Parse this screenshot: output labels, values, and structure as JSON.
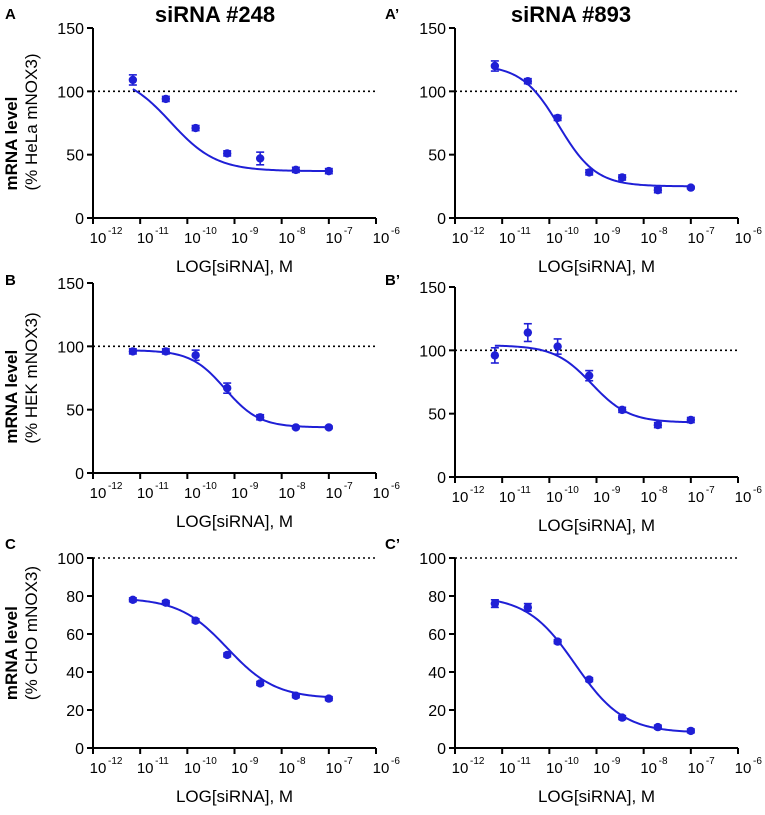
{
  "column_titles": [
    "siRNA #248",
    "siRNA #893"
  ],
  "row_ylabels": [
    {
      "line1": "mRNA level",
      "line2": "(% HeLa mNOX3)"
    },
    {
      "line1": "mRNA level",
      "line2": "(% HEK mNOX3)"
    },
    {
      "line1": "mRNA level",
      "line2": "(% CHO mNOX3)"
    }
  ],
  "colors": {
    "series": "#1f1fd6",
    "axis": "#000000",
    "reference_line": "#000000"
  },
  "chart_data": [
    {
      "panel_label": "A",
      "type": "scatter",
      "title": "siRNA #248",
      "xlabel": "LOG[siRNA], M",
      "ylabel": "mRNA level (% HeLa mNOX3)",
      "xscale": "log",
      "xlim_exp": [
        -12,
        -6
      ],
      "x_tick_exponents": [
        -12,
        -11,
        -10,
        -9,
        -8,
        -7,
        -6
      ],
      "ylim": [
        0,
        150
      ],
      "yticks": [
        0,
        50,
        100,
        150
      ],
      "reference_line": 100,
      "x": [
        7e-12,
        3.5e-11,
        1.5e-10,
        7e-10,
        3.5e-09,
        2e-08,
        1e-07
      ],
      "y": [
        109,
        94,
        71,
        51,
        47,
        38,
        37
      ],
      "err": [
        4,
        2,
        2,
        2,
        5,
        2,
        2
      ],
      "fit": {
        "bottom": 37,
        "top": 114,
        "logEC50": -10.35,
        "hill": 0.9
      }
    },
    {
      "panel_label": "A’",
      "type": "scatter",
      "title": "siRNA #893",
      "xlabel": "LOG[siRNA], M",
      "ylabel": "",
      "xscale": "log",
      "xlim_exp": [
        -12,
        -6
      ],
      "x_tick_exponents": [
        -12,
        -11,
        -10,
        -9,
        -8,
        -7,
        -6
      ],
      "ylim": [
        0,
        150
      ],
      "yticks": [
        0,
        50,
        100,
        150
      ],
      "reference_line": 100,
      "x": [
        7e-12,
        3.5e-11,
        1.5e-10,
        7e-10,
        3.5e-09,
        2e-08,
        1e-07
      ],
      "y": [
        120,
        108,
        79,
        36,
        32,
        22,
        24
      ],
      "err": [
        4,
        2,
        2,
        2,
        2,
        2,
        1
      ],
      "fit": {
        "bottom": 25,
        "top": 121,
        "logEC50": -9.8,
        "hill": 1.1
      }
    },
    {
      "panel_label": "B",
      "type": "scatter",
      "title": "",
      "xlabel": "LOG[siRNA], M",
      "ylabel": "mRNA level (% HEK mNOX3)",
      "xscale": "log",
      "xlim_exp": [
        -12,
        -6
      ],
      "x_tick_exponents": [
        -12,
        -11,
        -10,
        -9,
        -8,
        -7,
        -6
      ],
      "ylim": [
        0,
        150
      ],
      "yticks": [
        0,
        50,
        100,
        150
      ],
      "reference_line": 100,
      "x": [
        7e-12,
        3.5e-11,
        1.5e-10,
        7e-10,
        3.5e-09,
        2e-08,
        1e-07
      ],
      "y": [
        96,
        96,
        93,
        67,
        44,
        36,
        36
      ],
      "err": [
        2,
        2,
        4,
        4,
        2,
        1,
        1
      ],
      "fit": {
        "bottom": 36,
        "top": 97,
        "logEC50": -9.2,
        "hill": 1.2
      }
    },
    {
      "panel_label": "B’",
      "type": "scatter",
      "title": "",
      "xlabel": "LOG[siRNA], M",
      "ylabel": "",
      "xscale": "log",
      "xlim_exp": [
        -12,
        -6
      ],
      "x_tick_exponents": [
        -12,
        -11,
        -10,
        -9,
        -8,
        -7,
        -6
      ],
      "ylim": [
        0,
        150
      ],
      "yticks": [
        0,
        50,
        100,
        150
      ],
      "reference_line": 100,
      "x": [
        7e-12,
        3.5e-11,
        1.5e-10,
        7e-10,
        3.5e-09,
        2e-08,
        1e-07
      ],
      "y": [
        96,
        114,
        103,
        80,
        53,
        41,
        45
      ],
      "err": [
        6,
        7,
        6,
        4,
        2,
        2,
        2
      ],
      "fit": {
        "bottom": 43,
        "top": 104,
        "logEC50": -9.1,
        "hill": 1.1
      }
    },
    {
      "panel_label": "C",
      "type": "scatter",
      "title": "",
      "xlabel": "LOG[siRNA], M",
      "ylabel": "mRNA level (% CHO mNOX3)",
      "xscale": "log",
      "xlim_exp": [
        -12,
        -6
      ],
      "x_tick_exponents": [
        -12,
        -11,
        -10,
        -9,
        -8,
        -7,
        -6
      ],
      "ylim": [
        0,
        100
      ],
      "yticks": [
        0,
        20,
        40,
        60,
        80,
        100
      ],
      "reference_line": 100,
      "x": [
        7e-12,
        3.5e-11,
        1.5e-10,
        7e-10,
        3.5e-09,
        2e-08,
        1e-07
      ],
      "y": [
        78,
        76.5,
        67,
        49,
        34,
        27.5,
        26
      ],
      "err": [
        1,
        1,
        1,
        1,
        1,
        1,
        1
      ],
      "fit": {
        "bottom": 26,
        "top": 79,
        "logEC50": -9.15,
        "hill": 0.85
      }
    },
    {
      "panel_label": "C’",
      "type": "scatter",
      "title": "",
      "xlabel": "LOG[siRNA], M",
      "ylabel": "",
      "xscale": "log",
      "xlim_exp": [
        -12,
        -6
      ],
      "x_tick_exponents": [
        -12,
        -11,
        -10,
        -9,
        -8,
        -7,
        -6
      ],
      "ylim": [
        0,
        100
      ],
      "yticks": [
        0,
        20,
        40,
        60,
        80,
        100
      ],
      "reference_line": 100,
      "x": [
        7e-12,
        3.5e-11,
        1.5e-10,
        7e-10,
        3.5e-09,
        2e-08,
        1e-07
      ],
      "y": [
        76,
        74,
        56,
        36,
        16,
        11,
        9
      ],
      "err": [
        2,
        2,
        1,
        1,
        1,
        1,
        1
      ],
      "fit": {
        "bottom": 8,
        "top": 80,
        "logEC50": -9.45,
        "hill": 0.85
      }
    }
  ]
}
